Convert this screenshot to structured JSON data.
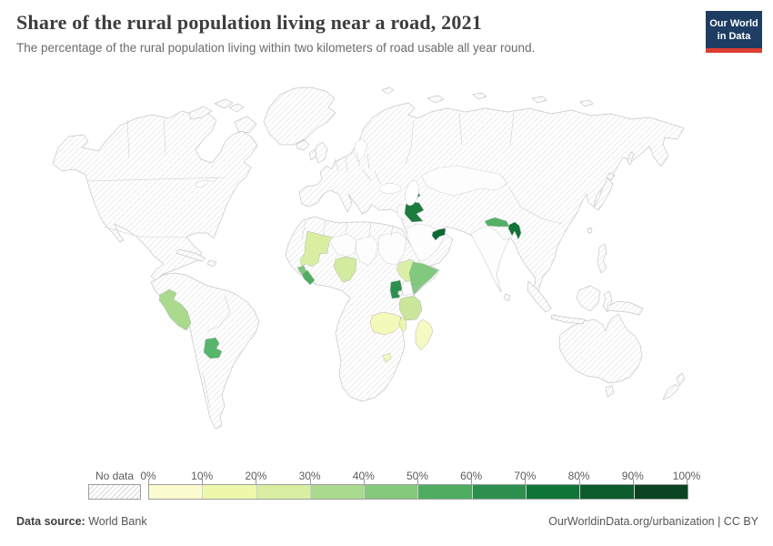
{
  "header": {
    "title": "Share of the rural population living near a road, 2021",
    "subtitle": "The percentage of the rural population living within two kilometers of road usable all year round.",
    "logo": {
      "line1": "Our World",
      "line2": "in Data",
      "bg_color": "#1d3d63",
      "accent_color": "#dc3e32"
    }
  },
  "legend": {
    "no_data_label": "No data",
    "tick_labels": [
      "0%",
      "10%",
      "20%",
      "30%",
      "40%",
      "50%",
      "60%",
      "70%",
      "80%",
      "90%",
      "100%"
    ],
    "colors": [
      "#fbfdd0",
      "#edf8ab",
      "#d8efa1",
      "#a9da8d",
      "#84c97c",
      "#4ead60",
      "#2c8f4e",
      "#0e7536",
      "#0d5c2e",
      "#0a4423"
    ],
    "no_data_style": "diagonal-hatch"
  },
  "map": {
    "hatch_line_color": "#dadada",
    "coast_border_color": "#c6c6c6",
    "country_border_color": "#cfcfcf",
    "colored_country_border": "#b3b3b3",
    "ocean_color": "#ffffff"
  },
  "footer": {
    "source_label": "Data source:",
    "source_value": " World Bank",
    "right_text": "OurWorldinData.org/urbanization | CC BY"
  },
  "chart_data": {
    "type": "heatmap",
    "map_type": "world-choropleth",
    "title": "Share of the rural population living near a road, 2021",
    "unit": "% of rural population living within 2 km of an all-season road",
    "legend_range": [
      "0%",
      "100%"
    ],
    "legend_step": "10%",
    "no_data": "all countries not listed are shown hatched (No data)",
    "countries": [
      {
        "id": "peru",
        "name": "Peru",
        "bin": "30-40%",
        "color": "#a9da8d"
      },
      {
        "id": "paraguay",
        "name": "Paraguay",
        "bin": "50-60%",
        "color": "#57b66b"
      },
      {
        "id": "mali",
        "name": "Mali",
        "bin": "20-30%",
        "color": "#d8efa2"
      },
      {
        "id": "sierra_leone",
        "name": "Sierra Leone",
        "bin": "40-50%",
        "color": "#7cc77d"
      },
      {
        "id": "liberia",
        "name": "Liberia",
        "bin": "50-60%",
        "color": "#4ead60"
      },
      {
        "id": "nigeria",
        "name": "Nigeria",
        "bin": "20-30%",
        "color": "#d2eb9e"
      },
      {
        "id": "ethiopia",
        "name": "Ethiopia",
        "bin": "20-30%",
        "color": "#daf0a6"
      },
      {
        "id": "somalia",
        "name": "Somalia",
        "bin": "40-50%",
        "color": "#82c87f"
      },
      {
        "id": "uganda",
        "name": "Uganda",
        "bin": "60-70%",
        "color": "#2c8f4e"
      },
      {
        "id": "tanzania",
        "name": "Tanzania",
        "bin": "30-40%",
        "color": "#c9e69b"
      },
      {
        "id": "zambia",
        "name": "Zambia",
        "bin": "10-20%",
        "color": "#f2f9b9"
      },
      {
        "id": "malawi",
        "name": "Malawi",
        "bin": "10-20%",
        "color": "#eef6ae"
      },
      {
        "id": "madagascar",
        "name": "Madagascar",
        "bin": "10-20%",
        "color": "#f5fac2"
      },
      {
        "id": "lesotho",
        "name": "Lesotho",
        "bin": "10-20%",
        "color": "#f3f9bd"
      },
      {
        "id": "iraq",
        "name": "Iraq",
        "bin": "70-80%",
        "color": "#1b7c3e"
      },
      {
        "id": "armenia",
        "name": "Armenia",
        "bin": "70-80%",
        "color": "#1e7f40"
      },
      {
        "id": "uae",
        "name": "United Arab Emirates",
        "bin": "80-90%",
        "color": "#0a6a33"
      },
      {
        "id": "nepal",
        "name": "Nepal",
        "bin": "50-60%",
        "color": "#52b065"
      },
      {
        "id": "bangladesh",
        "name": "Bangladesh",
        "bin": "70-80%",
        "color": "#107436"
      }
    ]
  }
}
